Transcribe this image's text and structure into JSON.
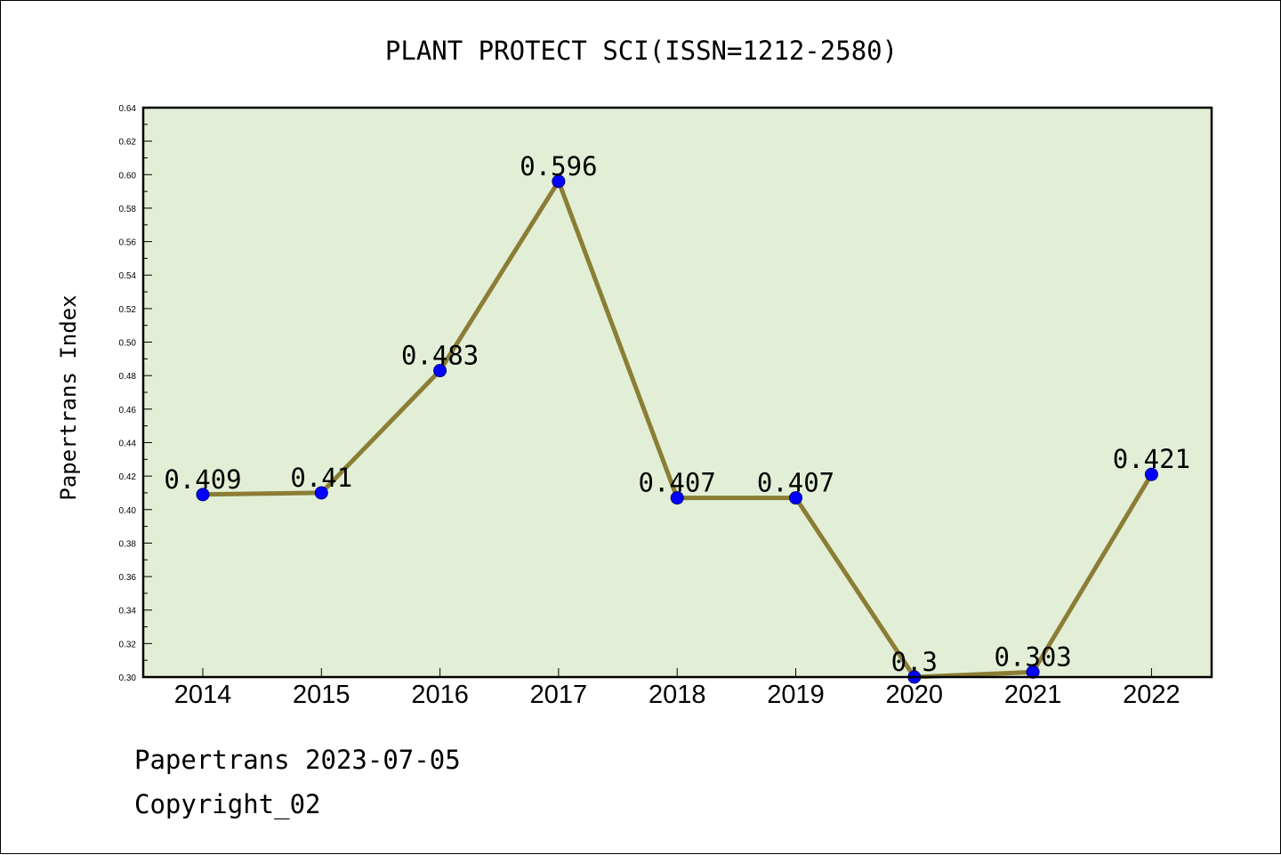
{
  "chart_data": {
    "type": "line",
    "title": "PLANT PROTECT SCI(ISSN=1212-2580)",
    "xlabel": "",
    "ylabel": "Papertrans Index",
    "categories": [
      "2014",
      "2015",
      "2016",
      "2017",
      "2018",
      "2019",
      "2020",
      "2021",
      "2022"
    ],
    "values": [
      0.409,
      0.41,
      0.483,
      0.596,
      0.407,
      0.407,
      0.3,
      0.303,
      0.421
    ],
    "data_labels": [
      "0.409",
      "0.41",
      "0.483",
      "0.596",
      "0.407",
      "0.407",
      "0.3",
      "0.303",
      "0.421"
    ],
    "ylim": [
      0.3,
      0.64
    ],
    "yticks": [
      "0.30",
      "0.32",
      "0.34",
      "0.36",
      "0.38",
      "0.40",
      "0.42",
      "0.44",
      "0.46",
      "0.48",
      "0.50",
      "0.52",
      "0.54",
      "0.56",
      "0.58",
      "0.60",
      "0.62",
      "0.64"
    ],
    "grid": false,
    "legend": "none",
    "colors": {
      "plot_background": "#e2efd6",
      "line": "#8b7d35",
      "marker": "#0000ff",
      "marker_edge": "#000080"
    }
  },
  "footer": {
    "date_line": "Papertrans 2023-07-05",
    "copyright": "Copyright_02"
  }
}
